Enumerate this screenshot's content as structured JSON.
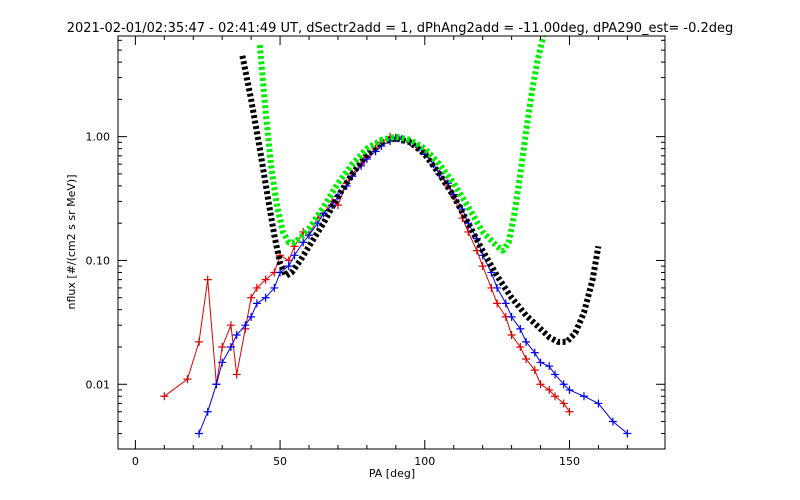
{
  "chart_data": {
    "type": "line",
    "title": "2021-02-01/02:35:47 - 02:41:49 UT, dSectr2add = 1, dPhAng2add = -11.00deg, dPA290_est=  -0.2deg",
    "xlabel": "PA [deg]",
    "ylabel": "nflux [#/(cm2 s sr MeV)]",
    "xlim": [
      -6,
      183
    ],
    "ylim": [
      0.003,
      6.5
    ],
    "yscale": "log",
    "grid": false,
    "x_ticks": [
      0,
      50,
      100,
      150
    ],
    "x_tick_labels": [
      "0",
      "50",
      "100",
      "150"
    ],
    "y_ticks": [
      0.01,
      0.1,
      1.0
    ],
    "y_tick_labels": [
      "0.01",
      "0.10",
      "1.00"
    ],
    "colors": {
      "red_series": "#dd0000",
      "blue_series": "#0000ee",
      "black_fit": "#000000",
      "green_fit": "#00ee00"
    },
    "series": [
      {
        "color": "#000000",
        "style": "thick-dashed",
        "x": [
          37,
          40,
          43,
          46,
          48,
          50,
          52,
          54,
          57,
          60,
          65,
          70,
          75,
          80,
          85,
          90,
          95,
          100,
          105,
          110,
          115,
          120,
          125,
          130,
          135,
          140,
          143,
          146,
          149,
          152,
          155,
          158,
          160
        ],
        "y": [
          4.5,
          2.0,
          0.8,
          0.3,
          0.16,
          0.095,
          0.075,
          0.08,
          0.1,
          0.13,
          0.2,
          0.33,
          0.5,
          0.72,
          0.9,
          0.97,
          0.9,
          0.72,
          0.5,
          0.33,
          0.2,
          0.12,
          0.075,
          0.05,
          0.036,
          0.028,
          0.024,
          0.022,
          0.022,
          0.026,
          0.038,
          0.07,
          0.13
        ]
      },
      {
        "color": "#00ee00",
        "style": "thick-dashed",
        "x": [
          43,
          45,
          47,
          49,
          51,
          53,
          55,
          58,
          60,
          65,
          70,
          75,
          80,
          85,
          90,
          95,
          100,
          105,
          110,
          115,
          120,
          125,
          127,
          129,
          131,
          133,
          135,
          137,
          139,
          141
        ],
        "y": [
          5.5,
          1.6,
          0.55,
          0.27,
          0.17,
          0.14,
          0.14,
          0.16,
          0.18,
          0.27,
          0.42,
          0.6,
          0.8,
          0.94,
          1.0,
          0.94,
          0.8,
          0.6,
          0.42,
          0.27,
          0.17,
          0.13,
          0.12,
          0.14,
          0.24,
          0.5,
          1.1,
          2.3,
          4.2,
          6.5
        ]
      },
      {
        "color": "#dd0000",
        "style": "thin-with-plus-markers",
        "x": [
          10,
          18,
          22,
          25,
          28,
          30,
          33,
          35,
          38,
          40,
          42,
          45,
          48,
          50,
          53,
          55,
          58,
          60,
          63,
          65,
          68,
          70,
          73,
          75,
          78,
          80,
          83,
          85,
          88,
          90,
          92,
          95,
          98,
          100,
          103,
          105,
          108,
          110,
          113,
          115,
          118,
          120,
          123,
          125,
          128,
          130,
          133,
          135,
          138,
          140,
          143,
          145,
          148,
          150
        ],
        "y": [
          0.008,
          0.011,
          0.022,
          0.07,
          0.01,
          0.02,
          0.03,
          0.012,
          0.028,
          0.05,
          0.06,
          0.07,
          0.08,
          0.11,
          0.1,
          0.13,
          0.17,
          0.16,
          0.22,
          0.24,
          0.3,
          0.28,
          0.42,
          0.5,
          0.6,
          0.68,
          0.8,
          0.9,
          1.0,
          0.98,
          0.95,
          0.9,
          0.82,
          0.74,
          0.6,
          0.5,
          0.4,
          0.33,
          0.22,
          0.17,
          0.12,
          0.09,
          0.06,
          0.045,
          0.035,
          0.025,
          0.02,
          0.016,
          0.013,
          0.01,
          0.009,
          0.008,
          0.007,
          0.006
        ]
      },
      {
        "color": "#0000ee",
        "style": "thin-with-plus-markers",
        "x": [
          22,
          25,
          28,
          30,
          33,
          35,
          38,
          40,
          42,
          45,
          48,
          50,
          53,
          55,
          58,
          60,
          63,
          65,
          68,
          70,
          73,
          75,
          78,
          80,
          83,
          85,
          88,
          90,
          92,
          95,
          98,
          100,
          103,
          105,
          108,
          110,
          113,
          115,
          118,
          120,
          123,
          125,
          128,
          130,
          133,
          135,
          138,
          140,
          143,
          145,
          148,
          150,
          155,
          160,
          165,
          170
        ],
        "y": [
          0.004,
          0.006,
          0.01,
          0.015,
          0.02,
          0.025,
          0.03,
          0.035,
          0.045,
          0.05,
          0.06,
          0.08,
          0.09,
          0.11,
          0.14,
          0.16,
          0.2,
          0.24,
          0.28,
          0.33,
          0.4,
          0.48,
          0.58,
          0.66,
          0.76,
          0.84,
          0.92,
          0.97,
          0.95,
          0.9,
          0.82,
          0.72,
          0.6,
          0.5,
          0.42,
          0.34,
          0.26,
          0.2,
          0.15,
          0.11,
          0.08,
          0.06,
          0.045,
          0.035,
          0.028,
          0.022,
          0.018,
          0.015,
          0.014,
          0.012,
          0.01,
          0.009,
          0.008,
          0.007,
          0.005,
          0.004
        ]
      }
    ]
  }
}
